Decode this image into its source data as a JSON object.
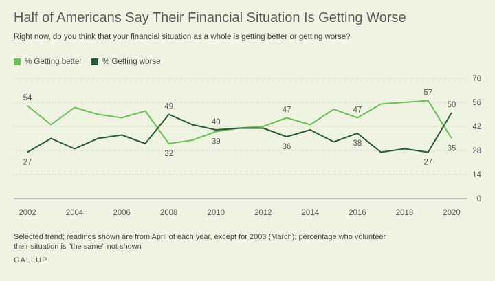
{
  "title": "Half of Americans Say Their Financial Situation Is Getting Worse",
  "subtitle": "Right now, do you think that your financial situation as a whole is getting better or getting worse?",
  "note": "Selected trend; readings shown are from April of each year, except for 2003 (March); percentage who volunteer their situation is \"the same\" not shown",
  "brand": "GALLUP",
  "colors": {
    "better": "#6cc05a",
    "worse": "#2b5a35",
    "grid": "#c9d6b8",
    "axis": "#555555"
  },
  "chart_data": {
    "type": "line",
    "x": [
      2002,
      2003,
      2004,
      2005,
      2006,
      2007,
      2008,
      2009,
      2010,
      2011,
      2012,
      2013,
      2014,
      2015,
      2016,
      2017,
      2018,
      2019,
      2020
    ],
    "series": [
      {
        "name": "% Getting better",
        "values": [
          54,
          43,
          53,
          49,
          47,
          51,
          32,
          34,
          39,
          41,
          42,
          47,
          43,
          52,
          47,
          55,
          56,
          57,
          35
        ]
      },
      {
        "name": "% Getting worse",
        "values": [
          27,
          35,
          29,
          35,
          37,
          32,
          49,
          43,
          40,
          41,
          41,
          36,
          40,
          33,
          38,
          27,
          29,
          27,
          50
        ]
      }
    ],
    "data_labels": [
      {
        "series": 0,
        "x": 2002,
        "text": "54",
        "pos": "above"
      },
      {
        "series": 0,
        "x": 2008,
        "text": "32",
        "pos": "below"
      },
      {
        "series": 0,
        "x": 2010,
        "text": "39",
        "pos": "below"
      },
      {
        "series": 0,
        "x": 2013,
        "text": "47",
        "pos": "above"
      },
      {
        "series": 0,
        "x": 2016,
        "text": "47",
        "pos": "above"
      },
      {
        "series": 0,
        "x": 2019,
        "text": "57",
        "pos": "above"
      },
      {
        "series": 0,
        "x": 2020,
        "text": "35",
        "pos": "below"
      },
      {
        "series": 1,
        "x": 2002,
        "text": "27",
        "pos": "below"
      },
      {
        "series": 1,
        "x": 2008,
        "text": "49",
        "pos": "above"
      },
      {
        "series": 1,
        "x": 2010,
        "text": "40",
        "pos": "above"
      },
      {
        "series": 1,
        "x": 2013,
        "text": "36",
        "pos": "below"
      },
      {
        "series": 1,
        "x": 2016,
        "text": "38",
        "pos": "below"
      },
      {
        "series": 1,
        "x": 2019,
        "text": "27",
        "pos": "below"
      },
      {
        "series": 1,
        "x": 2020,
        "text": "50",
        "pos": "above"
      }
    ],
    "x_ticks": [
      "2002",
      "2004",
      "2006",
      "2008",
      "2010",
      "2012",
      "2014",
      "2016",
      "2018",
      "2020"
    ],
    "y_ticks": [
      "0",
      "14",
      "28",
      "42",
      "56",
      "70"
    ],
    "ylim": [
      0,
      70
    ],
    "xlim": [
      2002,
      2020
    ],
    "grid": true,
    "legend": "top-left"
  }
}
